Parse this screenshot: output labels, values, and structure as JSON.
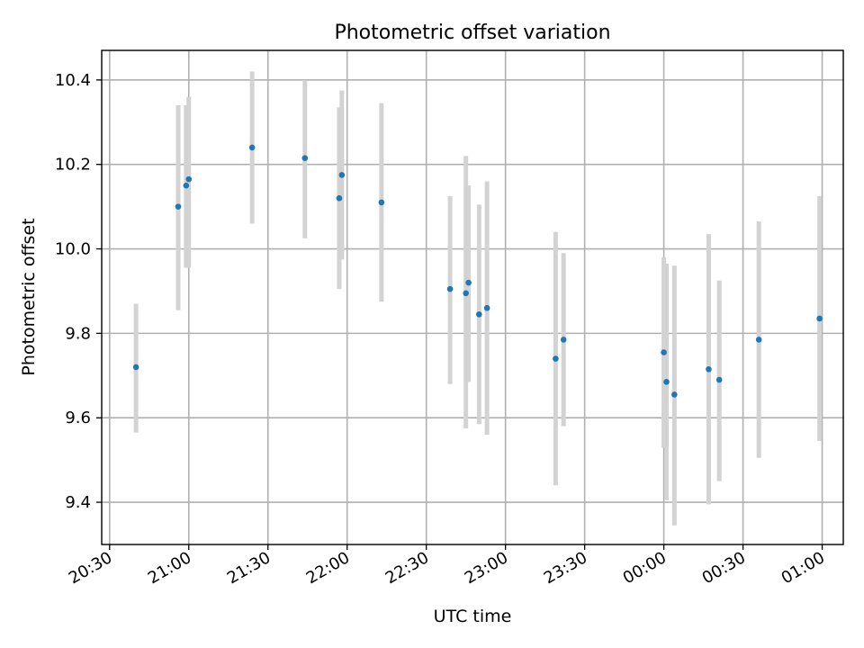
{
  "chart_data": {
    "type": "scatter",
    "title": "Photometric offset variation",
    "xlabel": "UTC time",
    "ylabel": "Photometric offset",
    "grid": true,
    "legend": "none",
    "xlim": [
      "20:27",
      "01:08"
    ],
    "ylim": [
      9.3,
      10.47
    ],
    "x_ticks": [
      "20:30",
      "21:00",
      "21:30",
      "22:00",
      "22:30",
      "23:00",
      "23:30",
      "00:00",
      "00:30",
      "01:00"
    ],
    "y_ticks": [
      "9.4",
      "9.6",
      "9.8",
      "10.0",
      "10.2",
      "10.4"
    ],
    "colors": {
      "marker": "#1f77b4",
      "errorbar": "#d3d3d3"
    },
    "series": [
      {
        "points": [
          {
            "x": "20:40",
            "y": 9.72,
            "lo": 9.565,
            "hi": 9.87
          },
          {
            "x": "20:56",
            "y": 10.1,
            "lo": 9.855,
            "hi": 10.34
          },
          {
            "x": "20:59",
            "y": 10.15,
            "lo": 9.955,
            "hi": 10.34
          },
          {
            "x": "21:00",
            "y": 10.165,
            "lo": 9.955,
            "hi": 10.36
          },
          {
            "x": "21:24",
            "y": 10.24,
            "lo": 10.06,
            "hi": 10.42
          },
          {
            "x": "21:44",
            "y": 10.215,
            "lo": 10.025,
            "hi": 10.4
          },
          {
            "x": "21:57",
            "y": 10.12,
            "lo": 9.905,
            "hi": 10.335
          },
          {
            "x": "21:58",
            "y": 10.175,
            "lo": 9.975,
            "hi": 10.375
          },
          {
            "x": "22:13",
            "y": 10.11,
            "lo": 9.875,
            "hi": 10.345
          },
          {
            "x": "22:39",
            "y": 9.905,
            "lo": 9.68,
            "hi": 10.125
          },
          {
            "x": "22:45",
            "y": 9.895,
            "lo": 9.575,
            "hi": 10.22
          },
          {
            "x": "22:46",
            "y": 9.92,
            "lo": 9.685,
            "hi": 10.15
          },
          {
            "x": "22:50",
            "y": 9.845,
            "lo": 9.585,
            "hi": 10.105
          },
          {
            "x": "22:53",
            "y": 9.86,
            "lo": 9.56,
            "hi": 10.16
          },
          {
            "x": "23:19",
            "y": 9.74,
            "lo": 9.44,
            "hi": 10.04
          },
          {
            "x": "23:22",
            "y": 9.785,
            "lo": 9.58,
            "hi": 9.99
          },
          {
            "x": "00:00",
            "y": 9.755,
            "lo": 9.53,
            "hi": 9.98
          },
          {
            "x": "00:01",
            "y": 9.685,
            "lo": 9.405,
            "hi": 9.965
          },
          {
            "x": "00:04",
            "y": 9.655,
            "lo": 9.345,
            "hi": 9.96
          },
          {
            "x": "00:17",
            "y": 9.715,
            "lo": 9.395,
            "hi": 10.035
          },
          {
            "x": "00:21",
            "y": 9.69,
            "lo": 9.45,
            "hi": 9.925
          },
          {
            "x": "00:36",
            "y": 9.785,
            "lo": 9.505,
            "hi": 10.065
          },
          {
            "x": "00:59",
            "y": 9.835,
            "lo": 9.545,
            "hi": 10.125
          }
        ]
      }
    ]
  }
}
